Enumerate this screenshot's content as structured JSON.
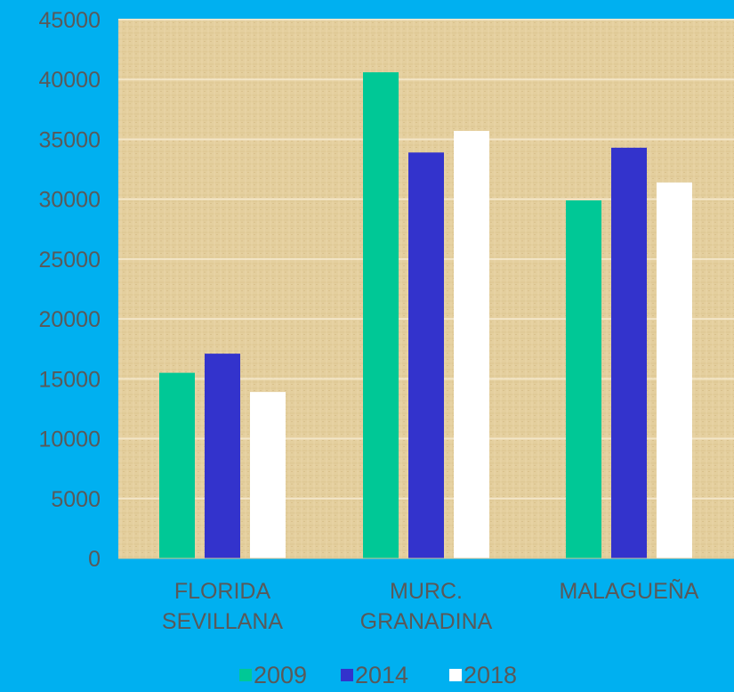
{
  "chart_data": {
    "type": "bar",
    "categories": [
      [
        "FLORIDA",
        "SEVILLANA"
      ],
      [
        "MURC.",
        "GRANADINA"
      ],
      [
        "MALAGUEÑA"
      ]
    ],
    "series": [
      {
        "name": "2009",
        "color": "#00c896",
        "values": [
          15500,
          40600,
          29900
        ]
      },
      {
        "name": "2014",
        "color": "#3333cc",
        "values": [
          17100,
          33900,
          34300
        ]
      },
      {
        "name": "2018",
        "color": "#ffffff",
        "values": [
          13900,
          35700,
          31400
        ]
      }
    ],
    "ylim": [
      0,
      45000
    ],
    "yticks": [
      "0",
      "5000",
      "10000",
      "15000",
      "20000",
      "25000",
      "30000",
      "35000",
      "40000",
      "45000"
    ],
    "grid": true,
    "legend_position": "bottom",
    "plot_background": "parchment texture"
  }
}
